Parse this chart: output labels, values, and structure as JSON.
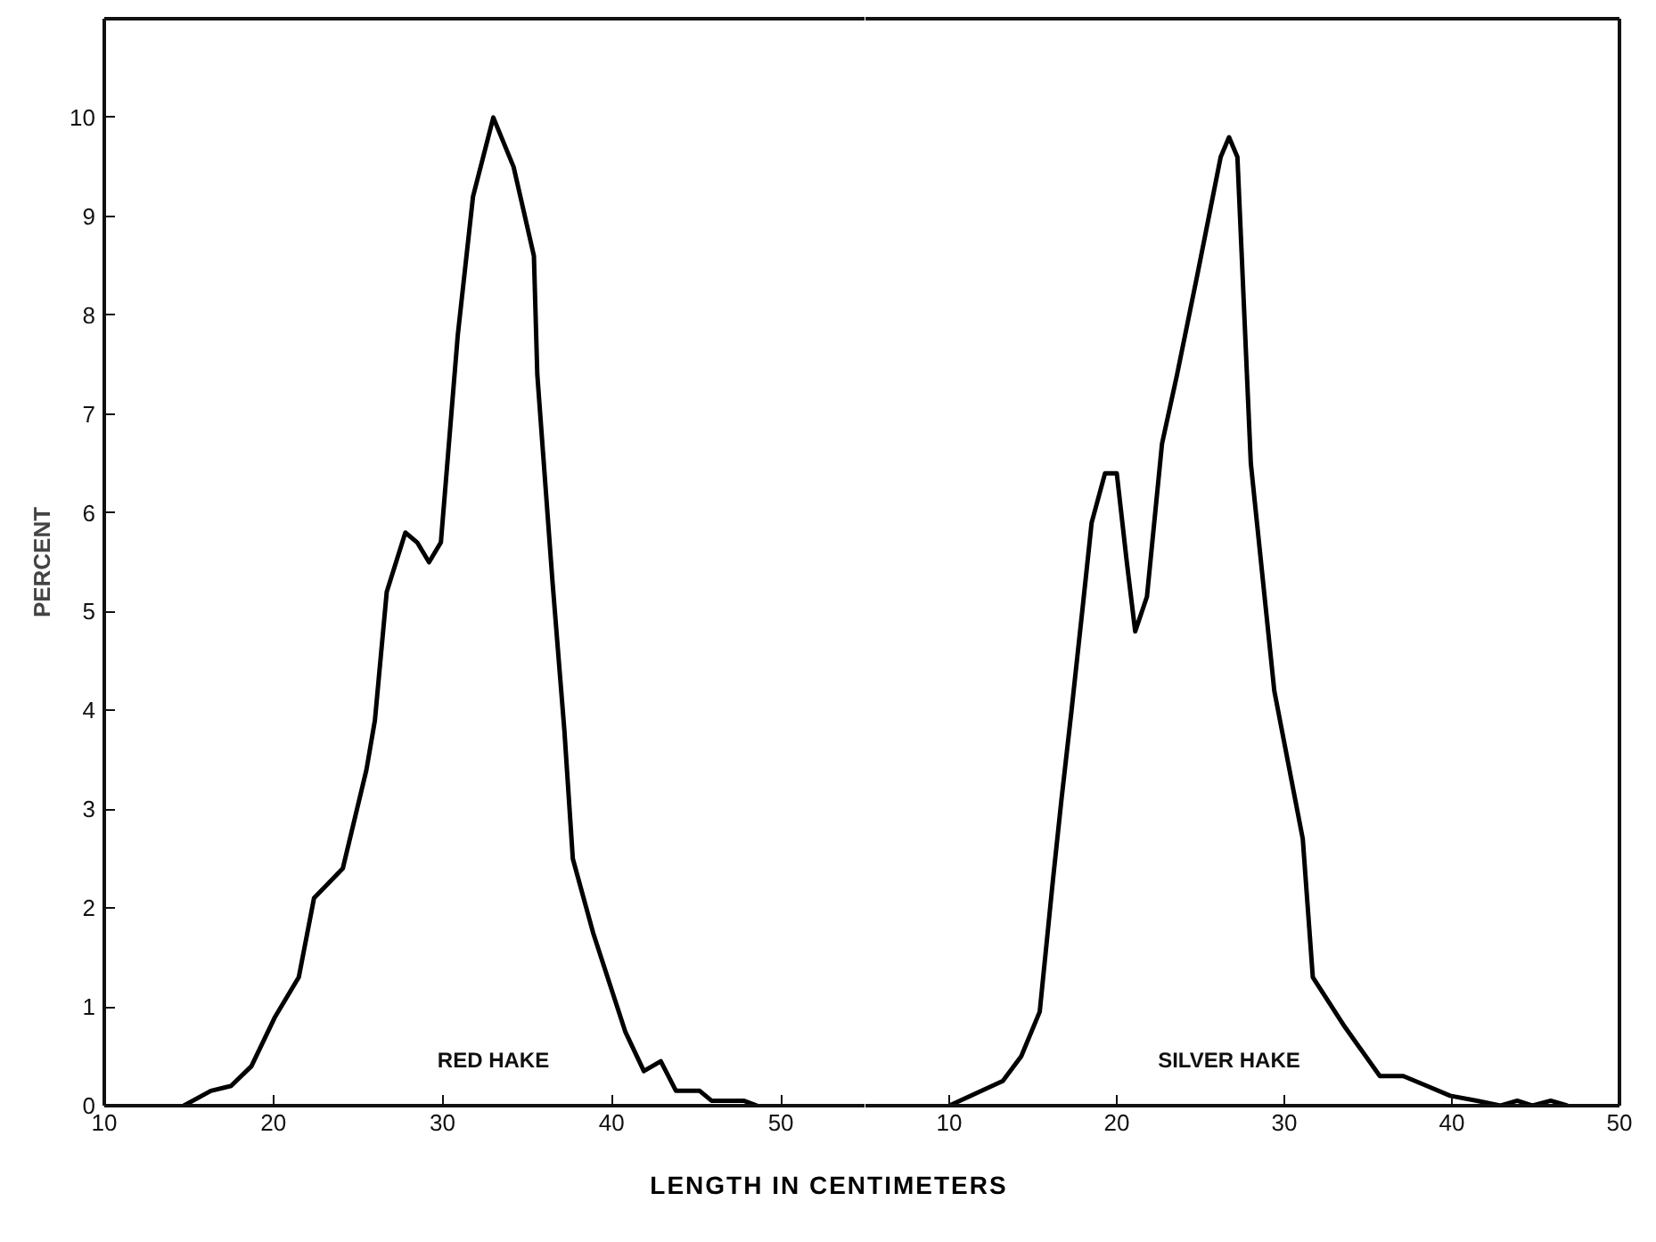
{
  "chart_data": [
    {
      "type": "line",
      "ylabel": "PERCENT",
      "xlabel": "LENGTH IN CENTIMETERS",
      "xlim": [
        10,
        55
      ],
      "ylim": [
        0,
        11
      ],
      "xticks": [
        10,
        20,
        30,
        40,
        50
      ],
      "yticks": [
        0,
        1,
        2,
        3,
        4,
        5,
        6,
        7,
        8,
        9,
        10
      ],
      "grid": false,
      "x": [
        14.7,
        16.3,
        17.5,
        18.7,
        20.1,
        21.5,
        22.4,
        24.1,
        25.5,
        26.0,
        26.7,
        27.8,
        28.5,
        29.2,
        29.9,
        30.9,
        31.8,
        33.0,
        34.2,
        35.4,
        35.6,
        36.5,
        37.2,
        37.7,
        38.9,
        40.8,
        41.9,
        42.9,
        43.8,
        45.2,
        45.9,
        47.8,
        48.6
      ],
      "series": [
        {
          "name": "RED HAKE",
          "color": "#000000",
          "values": [
            0,
            0.15,
            0.2,
            0.4,
            0.9,
            1.3,
            2.1,
            2.4,
            3.4,
            3.9,
            5.2,
            5.8,
            5.7,
            5.5,
            5.7,
            7.8,
            9.2,
            10.0,
            9.5,
            8.6,
            7.4,
            5.3,
            3.8,
            2.5,
            1.75,
            0.75,
            0.35,
            0.45,
            0.15,
            0.15,
            0.05,
            0.05,
            0
          ]
        }
      ]
    },
    {
      "type": "line",
      "xlim": [
        5,
        50
      ],
      "ylim": [
        0,
        11
      ],
      "xticks": [
        10,
        20,
        30,
        40,
        50
      ],
      "tick_labels": "x",
      "grid": false,
      "x": [
        10,
        13.2,
        14.3,
        15.4,
        16.2,
        16.7,
        17.3,
        18.0,
        18.5,
        19.3,
        20.0,
        20.6,
        21.1,
        21.8,
        22.7,
        23.6,
        24.8,
        26.2,
        26.7,
        27.2,
        28.0,
        29.4,
        31.1,
        31.7,
        33.6,
        35.7,
        37.1,
        38.5,
        39.9,
        41.5,
        42.9,
        43.9,
        44.8,
        45.9,
        46.9
      ],
      "series": [
        {
          "name": "SILVER HAKE",
          "color": "#000000",
          "values": [
            0,
            0.25,
            0.5,
            0.95,
            2.3,
            3.1,
            4.0,
            5.1,
            5.9,
            6.4,
            6.4,
            5.5,
            4.8,
            5.15,
            6.7,
            7.4,
            8.4,
            9.6,
            9.8,
            9.6,
            6.5,
            4.2,
            2.7,
            1.3,
            0.8,
            0.3,
            0.3,
            0.2,
            0.1,
            0.05,
            0,
            0.05,
            0,
            0.05,
            0
          ]
        }
      ]
    }
  ]
}
